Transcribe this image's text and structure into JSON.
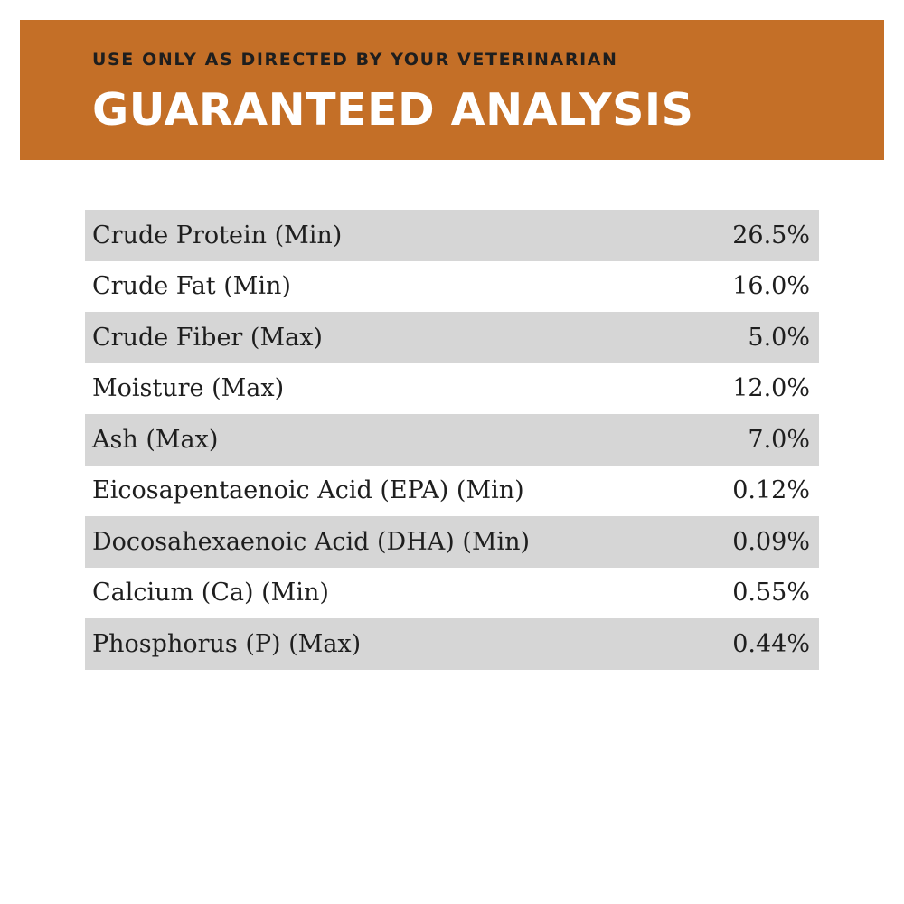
{
  "colors": {
    "header_band": "#c46f27",
    "row_shade": "#d6d6d6",
    "text_dark": "#1e1e1e",
    "title_text": "#ffffff"
  },
  "header": {
    "subtitle": "USE ONLY AS DIRECTED BY YOUR VETERINARIAN",
    "title": "GUARANTEED ANALYSIS"
  },
  "analysis": {
    "rows": [
      {
        "nutrient": "Crude Protein (Min)",
        "amount": "26.5%",
        "shaded": true
      },
      {
        "nutrient": "Crude Fat (Min)",
        "amount": "16.0%",
        "shaded": false
      },
      {
        "nutrient": "Crude Fiber (Max)",
        "amount": "5.0%",
        "shaded": true
      },
      {
        "nutrient": "Moisture (Max)",
        "amount": "12.0%",
        "shaded": false
      },
      {
        "nutrient": "Ash (Max)",
        "amount": "7.0%",
        "shaded": true
      },
      {
        "nutrient": "Eicosapentaenoic Acid (EPA) (Min)",
        "amount": "0.12%",
        "shaded": false
      },
      {
        "nutrient": "Docosahexaenoic Acid (DHA) (Min)",
        "amount": "0.09%",
        "shaded": true
      },
      {
        "nutrient": "Calcium (Ca) (Min)",
        "amount": "0.55%",
        "shaded": false
      },
      {
        "nutrient": "Phosphorus (P) (Max)",
        "amount": "0.44%",
        "shaded": true
      }
    ]
  }
}
